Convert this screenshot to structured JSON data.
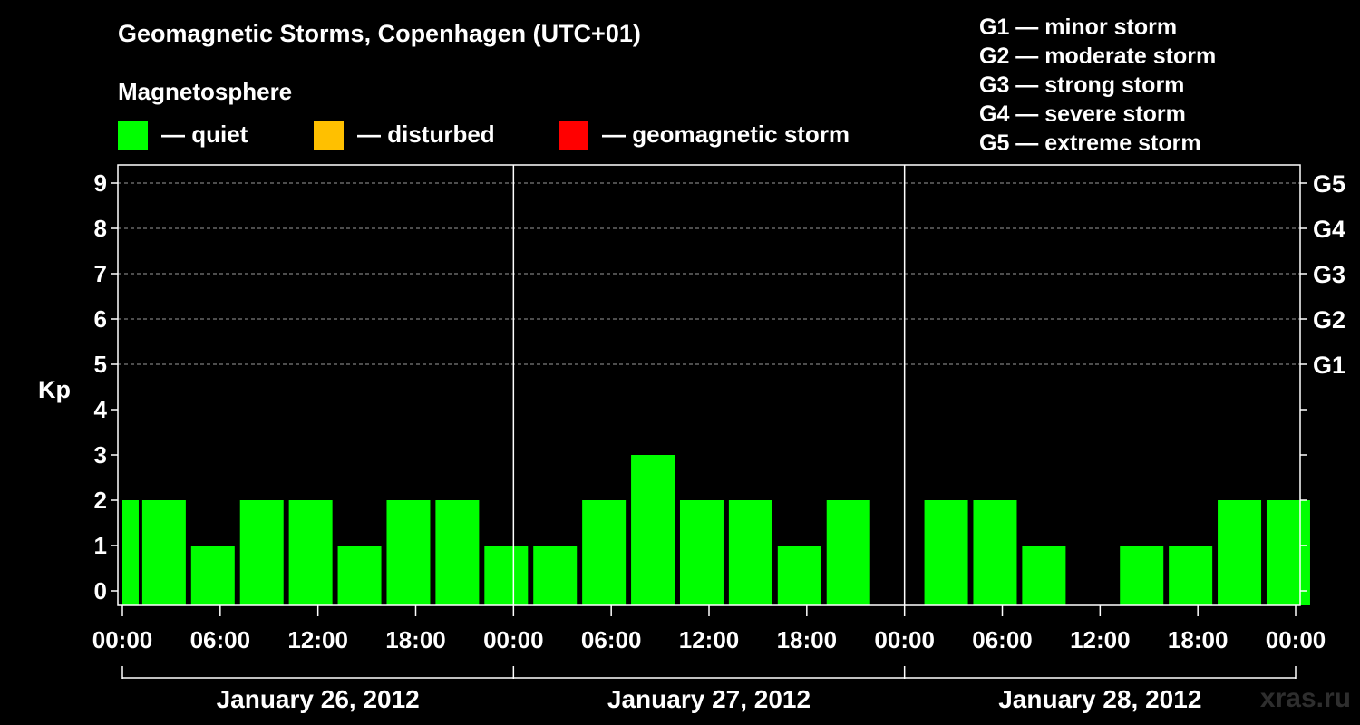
{
  "chart_data": {
    "type": "bar",
    "title": "Geomagnetic Storms, Copenhagen (UTC+01)",
    "subtitle": "Magnetosphere",
    "ylabel": "Kp",
    "ylim": [
      0,
      9
    ],
    "y_ticks": [
      "0",
      "1",
      "2",
      "3",
      "4",
      "5",
      "6",
      "7",
      "8",
      "9"
    ],
    "g_ticks": [
      {
        "kp": 5,
        "label": "G1"
      },
      {
        "kp": 6,
        "label": "G2"
      },
      {
        "kp": 7,
        "label": "G3"
      },
      {
        "kp": 8,
        "label": "G4"
      },
      {
        "kp": 9,
        "label": "G5"
      }
    ],
    "x_tick_labels": [
      "00:00",
      "06:00",
      "12:00",
      "18:00",
      "00:00",
      "06:00",
      "12:00",
      "18:00",
      "00:00",
      "06:00",
      "12:00",
      "18:00",
      "00:00"
    ],
    "days": [
      "January 26, 2012",
      "January 27, 2012",
      "January 28, 2012"
    ],
    "interval_hours": 3,
    "first_interval_hours": 1,
    "values": [
      2,
      2,
      1,
      2,
      2,
      1,
      2,
      2,
      1,
      1,
      2,
      3,
      2,
      2,
      1,
      2,
      null,
      2,
      2,
      1,
      null,
      1,
      1,
      2,
      2
    ],
    "grid": "dashed",
    "legend": [
      {
        "label": "— quiet",
        "color": "#00ff00"
      },
      {
        "label": "— disturbed",
        "color": "#ffc000"
      },
      {
        "label": "— geomagnetic storm",
        "color": "#ff0000"
      }
    ],
    "g_scale_legend": [
      "G1 — minor storm",
      "G2 — moderate storm",
      "G3 — strong storm",
      "G4 — severe storm",
      "G5 — extreme storm"
    ]
  },
  "credit": "xras.ru"
}
